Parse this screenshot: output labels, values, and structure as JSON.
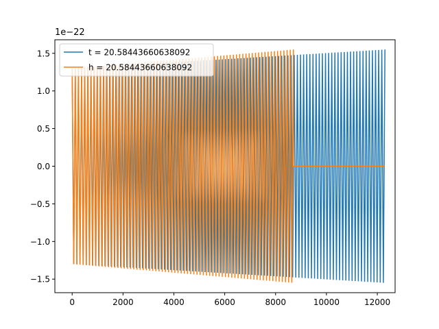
{
  "chart_data": {
    "type": "line",
    "title": "",
    "xlabel": "",
    "ylabel": "",
    "y_scale_label": "1e−22",
    "xlim": [
      -680,
      12700
    ],
    "ylim": [
      -1.68,
      1.68
    ],
    "x_ticks": [
      0,
      2000,
      4000,
      6000,
      8000,
      10000,
      12000
    ],
    "x_tick_labels": [
      "0",
      "2000",
      "4000",
      "6000",
      "8000",
      "10000",
      "12000"
    ],
    "y_ticks": [
      -1.5,
      -1.0,
      -0.5,
      0.0,
      0.5,
      1.0,
      1.5
    ],
    "y_tick_labels": [
      "−1.5",
      "−1.0",
      "−0.5",
      "0.0",
      "0.5",
      "1.0",
      "1.5"
    ],
    "grid": false,
    "legend_position": "top-left",
    "series": [
      {
        "name": "t = 20.58443660638092",
        "color": "#1f77b4",
        "x_start": 0,
        "x_end": 12300,
        "amplitude_start": 1.3,
        "amplitude_end": 1.55,
        "cycles": 200
      },
      {
        "name": "h = 20.58443660638092",
        "color": "#ff7f0e",
        "x_start": 0,
        "x_end": 8700,
        "amplitude_start": 1.3,
        "amplitude_end": 1.55,
        "cycles": 140,
        "flat_after_x": 8700,
        "flat_until_x": 12300,
        "flat_value": 0.0
      }
    ]
  }
}
